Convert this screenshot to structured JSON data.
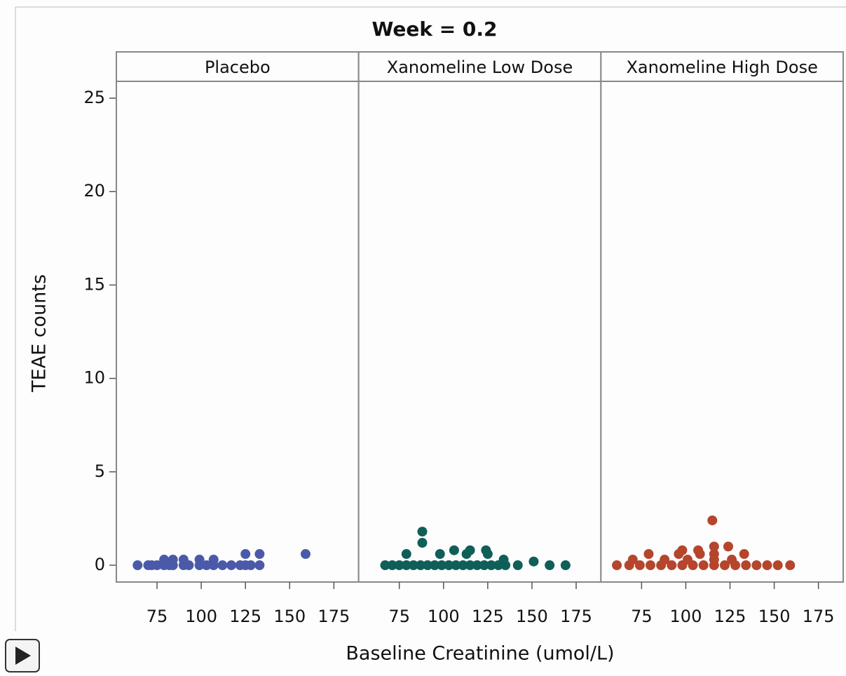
{
  "chart_data": {
    "type": "scatter",
    "title": "Week = 0.2",
    "xlabel": "Baseline Creatinine (umol/L)",
    "ylabel": "TEAE counts",
    "ylim": [
      -0.9,
      25.9
    ],
    "yticks": [
      0,
      5,
      10,
      15,
      20,
      25
    ],
    "xlim": [
      52,
      189
    ],
    "xticks": [
      75,
      100,
      125,
      150,
      175
    ],
    "series": [
      {
        "name": "Placebo",
        "color": "#4b5aa8",
        "x": [
          64,
          70,
          72,
          75,
          79,
          82,
          84,
          90,
          93,
          99,
          103,
          107,
          112,
          117,
          122,
          125,
          128,
          133,
          79,
          84,
          90,
          99,
          107,
          125,
          133,
          159
        ],
        "values": [
          0,
          0,
          0,
          0,
          0,
          0,
          0,
          0,
          0,
          0,
          0,
          0,
          0,
          0,
          0,
          0,
          0,
          0,
          0.3,
          0.3,
          0.3,
          0.3,
          0.3,
          0.6,
          0.6,
          0.6
        ]
      },
      {
        "name": "Xanomeline Low Dose",
        "color": "#0f5f58",
        "x": [
          67,
          71,
          75,
          79,
          83,
          87,
          91,
          95,
          99,
          103,
          107,
          111,
          115,
          119,
          123,
          127,
          131,
          135,
          142,
          160,
          169,
          151,
          134,
          79,
          98,
          113,
          125,
          106,
          115,
          124,
          88,
          88
        ],
        "values": [
          0,
          0,
          0,
          0,
          0,
          0,
          0,
          0,
          0,
          0,
          0,
          0,
          0,
          0,
          0,
          0,
          0,
          0,
          0,
          0,
          0,
          0.2,
          0.3,
          0.6,
          0.6,
          0.6,
          0.6,
          0.8,
          0.8,
          0.8,
          1.2,
          1.8
        ]
      },
      {
        "name": "Xanomeline High Dose",
        "color": "#b5452c",
        "x": [
          61,
          68,
          74,
          80,
          86,
          92,
          98,
          104,
          110,
          116,
          122,
          128,
          134,
          140,
          146,
          152,
          159,
          70,
          88,
          101,
          116,
          126,
          79,
          96,
          108,
          116,
          133,
          98,
          107,
          116,
          124,
          115
        ],
        "values": [
          0,
          0,
          0,
          0,
          0,
          0,
          0,
          0,
          0,
          0,
          0,
          0,
          0,
          0,
          0,
          0,
          0,
          0.3,
          0.3,
          0.3,
          0.3,
          0.3,
          0.6,
          0.6,
          0.6,
          0.6,
          0.6,
          0.8,
          0.8,
          1,
          1,
          2.4
        ]
      }
    ]
  }
}
